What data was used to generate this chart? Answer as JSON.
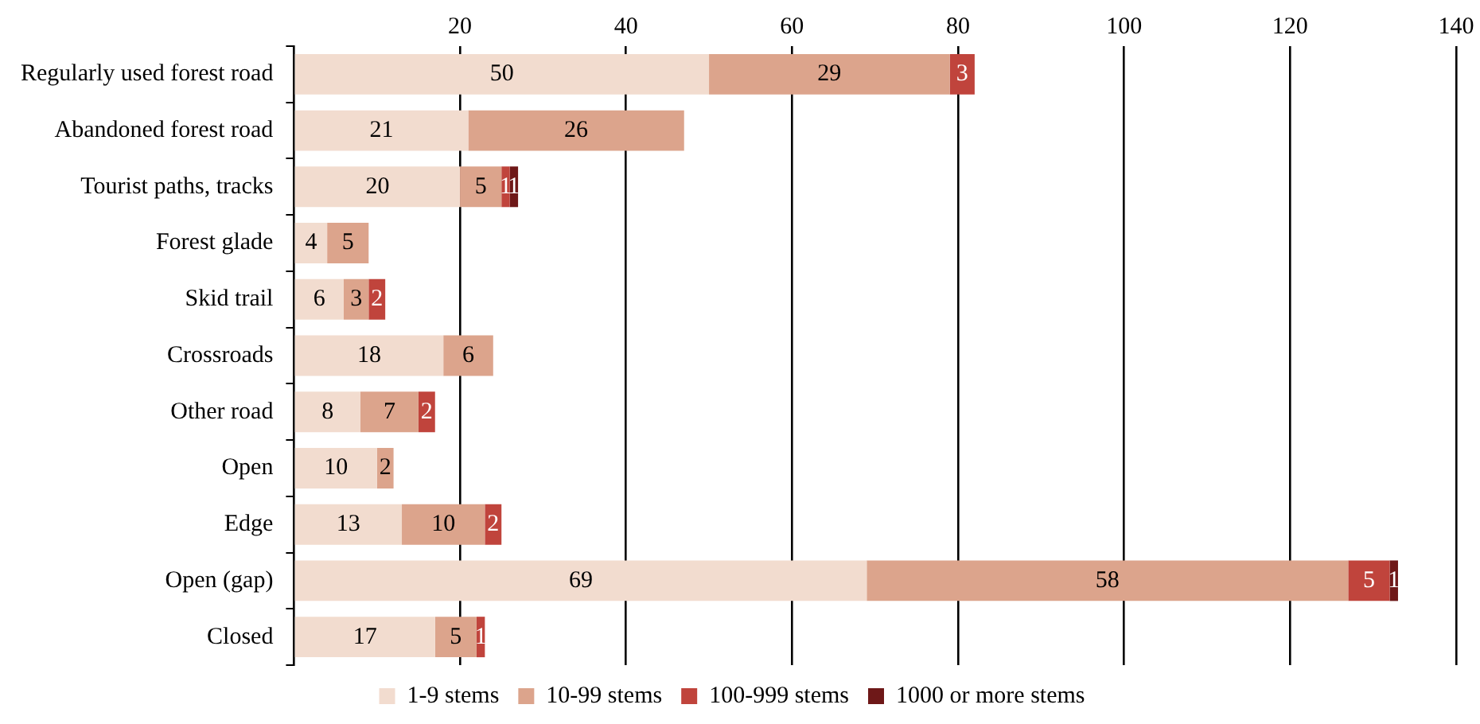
{
  "chart_data": {
    "type": "bar",
    "orientation": "horizontal",
    "stacked": true,
    "categories": [
      "Regularly used forest road",
      "Abandoned forest road",
      "Tourist paths, tracks",
      "Forest glade",
      "Skid trail",
      "Crossroads",
      "Other road",
      "Open",
      "Edge",
      "Open (gap)",
      "Closed"
    ],
    "series": [
      {
        "name": "1-9 stems",
        "color": "#f2dccf",
        "values": [
          50,
          21,
          20,
          4,
          6,
          18,
          8,
          10,
          13,
          69,
          17
        ]
      },
      {
        "name": "10-99 stems",
        "color": "#dca48c",
        "values": [
          29,
          26,
          5,
          5,
          3,
          6,
          7,
          2,
          10,
          58,
          5
        ]
      },
      {
        "name": "100-999 stems",
        "color": "#c0443c",
        "values": [
          3,
          null,
          1,
          null,
          2,
          null,
          2,
          null,
          2,
          5,
          1
        ]
      },
      {
        "name": "1000 or more stems",
        "color": "#6e1818",
        "values": [
          null,
          null,
          1,
          null,
          null,
          null,
          null,
          null,
          null,
          1,
          null
        ]
      }
    ],
    "xlim": [
      0,
      140
    ],
    "xticks": [
      {
        "value": 0,
        "label": null
      },
      20,
      40,
      60,
      80,
      100,
      120,
      140
    ],
    "grid": "x",
    "legend": "bottom",
    "data_labels": true
  }
}
